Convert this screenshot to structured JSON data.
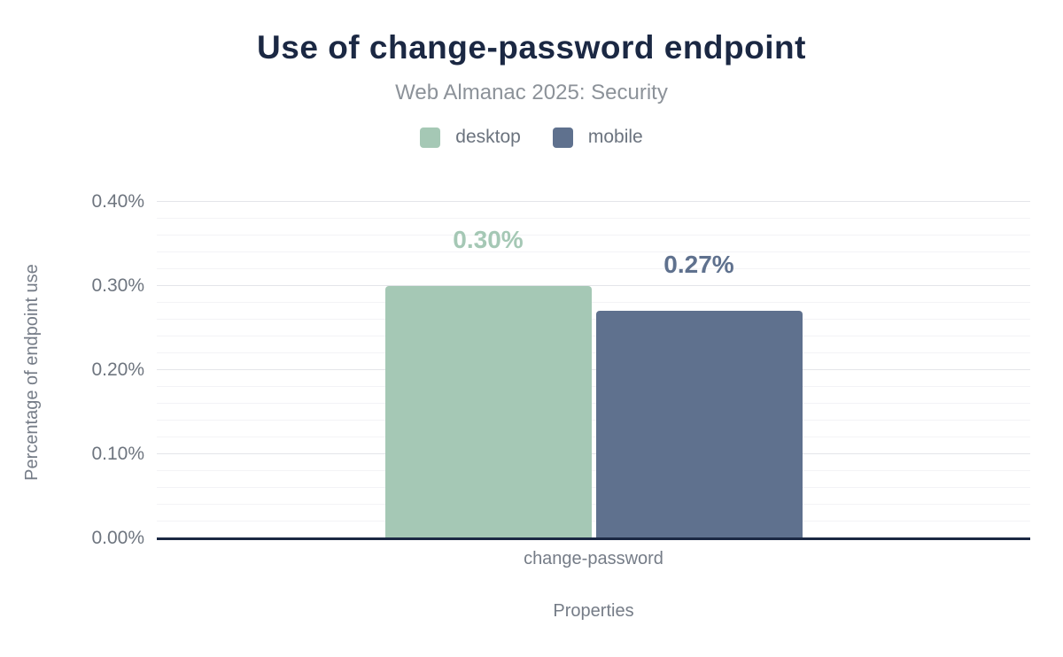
{
  "title": "Use of change-password endpoint",
  "subtitle": "Web Almanac 2025: Security",
  "legend": [
    {
      "label": "desktop",
      "color": "#a5c8b5"
    },
    {
      "label": "mobile",
      "color": "#5f718e"
    }
  ],
  "colors": {
    "title": "#1b2843",
    "subtitle": "#8c9299",
    "axis_line": "#1b2843",
    "tick_text": "#6e757f",
    "axis_text": "#757c87",
    "legend_text": "#6b737e",
    "grid_major": "#e4e5e9",
    "grid_minor": "#f3f3f6",
    "desktop": "#a5c8b5",
    "mobile": "#5f718e"
  },
  "chart_data": {
    "type": "bar",
    "categories": [
      "change-password"
    ],
    "series": [
      {
        "name": "desktop",
        "values": [
          0.3
        ],
        "label": "0.30%",
        "color": "#a5c8b5"
      },
      {
        "name": "mobile",
        "values": [
          0.27
        ],
        "label": "0.27%",
        "color": "#5f718e"
      }
    ],
    "title": "Use of change-password endpoint",
    "subtitle": "Web Almanac 2025: Security",
    "xlabel": "Properties",
    "ylabel": "Percentage of endpoint use",
    "ylim": [
      0,
      0.42
    ],
    "yticks": [
      "0.00%",
      "0.10%",
      "0.20%",
      "0.30%",
      "0.40%"
    ],
    "ytick_values": [
      0,
      0.1,
      0.2,
      0.3,
      0.4
    ],
    "minor_grid_step": 0.02,
    "grid": "on",
    "legend_position": "top"
  }
}
